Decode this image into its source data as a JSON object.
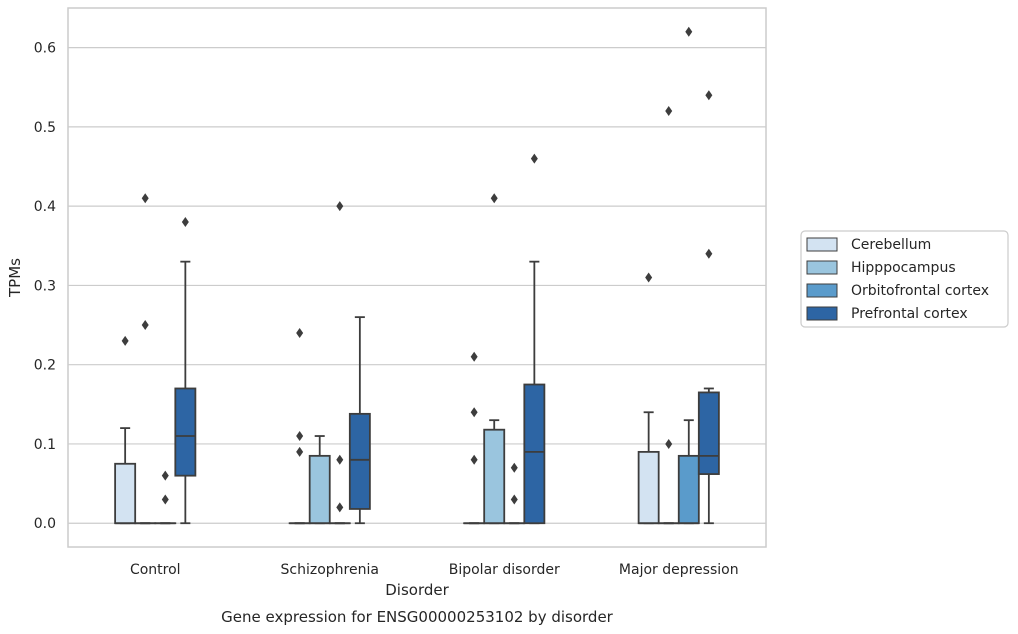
{
  "chart_data": {
    "type": "box",
    "xlabel": "Disorder",
    "ylabel": "TPMs",
    "caption": "Gene expression for ENSG00000253102 by disorder",
    "categories": [
      "Control",
      "Schizophrenia",
      "Bipolar disorder",
      "Major depression"
    ],
    "ylim": [
      -0.03,
      0.65
    ],
    "yticks": [
      0.0,
      0.1,
      0.2,
      0.3,
      0.4,
      0.5,
      0.6
    ],
    "ytick_labels": [
      "0.0",
      "0.1",
      "0.2",
      "0.3",
      "0.4",
      "0.5",
      "0.6"
    ],
    "grid": true,
    "legend": {
      "placement": "right"
    },
    "series": [
      {
        "name": "Cerebellum",
        "color": "#d3e3f2",
        "boxes": [
          {
            "min": 0.0,
            "q1": 0.0,
            "median": 0.0,
            "q3": 0.075,
            "max": 0.12,
            "outliers": [
              0.23
            ]
          },
          {
            "min": 0.0,
            "q1": 0.0,
            "median": 0.0,
            "q3": 0.0,
            "max": 0.0,
            "outliers": [
              0.24,
              0.11,
              0.09
            ]
          },
          {
            "min": 0.0,
            "q1": 0.0,
            "median": 0.0,
            "q3": 0.0,
            "max": 0.0,
            "outliers": [
              0.21,
              0.14,
              0.08
            ]
          },
          {
            "min": 0.0,
            "q1": 0.0,
            "median": 0.0,
            "q3": 0.09,
            "max": 0.14,
            "outliers": [
              0.31
            ]
          }
        ]
      },
      {
        "name": "Hipppocampus",
        "color": "#9ac5de",
        "boxes": [
          {
            "min": 0.0,
            "q1": 0.0,
            "median": 0.0,
            "q3": 0.0,
            "max": 0.0,
            "outliers": [
              0.41,
              0.25
            ]
          },
          {
            "min": 0.0,
            "q1": 0.0,
            "median": 0.0,
            "q3": 0.085,
            "max": 0.11,
            "outliers": []
          },
          {
            "min": 0.0,
            "q1": 0.0,
            "median": 0.0,
            "q3": 0.118,
            "max": 0.13,
            "outliers": [
              0.41
            ]
          },
          {
            "min": 0.0,
            "q1": 0.0,
            "median": 0.0,
            "q3": 0.0,
            "max": 0.0,
            "outliers": [
              0.52,
              0.1
            ]
          }
        ]
      },
      {
        "name": "Orbitofrontal cortex",
        "color": "#5a9bcb",
        "boxes": [
          {
            "min": 0.0,
            "q1": 0.0,
            "median": 0.0,
            "q3": 0.0,
            "max": 0.0,
            "outliers": [
              0.06,
              0.03
            ]
          },
          {
            "min": 0.0,
            "q1": 0.0,
            "median": 0.0,
            "q3": 0.0,
            "max": 0.0,
            "outliers": [
              0.4,
              0.08,
              0.02
            ]
          },
          {
            "min": 0.0,
            "q1": 0.0,
            "median": 0.0,
            "q3": 0.0,
            "max": 0.0,
            "outliers": [
              0.07,
              0.03
            ]
          },
          {
            "min": 0.0,
            "q1": 0.0,
            "median": 0.0,
            "q3": 0.085,
            "max": 0.13,
            "outliers": [
              0.62
            ]
          }
        ]
      },
      {
        "name": "Prefrontal cortex",
        "color": "#2d65a4",
        "boxes": [
          {
            "min": 0.0,
            "q1": 0.06,
            "median": 0.11,
            "q3": 0.17,
            "max": 0.33,
            "outliers": [
              0.38
            ]
          },
          {
            "min": 0.0,
            "q1": 0.018,
            "median": 0.08,
            "q3": 0.138,
            "max": 0.26,
            "outliers": []
          },
          {
            "min": 0.0,
            "q1": 0.0,
            "median": 0.09,
            "q3": 0.175,
            "max": 0.33,
            "outliers": [
              0.46
            ]
          },
          {
            "min": 0.0,
            "q1": 0.062,
            "median": 0.085,
            "q3": 0.165,
            "max": 0.17,
            "outliers": [
              0.54,
              0.34
            ]
          }
        ]
      }
    ],
    "colors": {
      "stroke": "#3d3d3d",
      "grid": "#cccccc",
      "frame": "#cccccc"
    }
  }
}
